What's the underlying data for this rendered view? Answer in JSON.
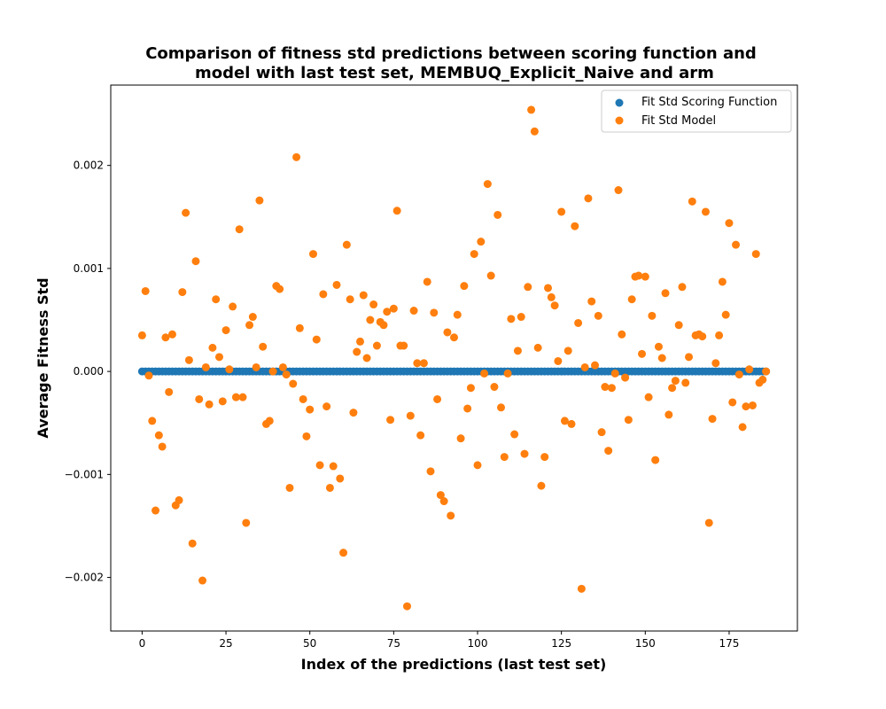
{
  "chart_data": {
    "type": "scatter",
    "title_lines": [
      "Comparison of fitness std predictions between scoring function and",
      "model with last test set, MEMBUQ_Explicit_Naive and arm"
    ],
    "xlabel": "Index of the predictions (last test set)",
    "ylabel": "Average Fitness Std",
    "xlim": [
      -9.35,
      195.35
    ],
    "ylim": [
      -0.00252,
      0.00278
    ],
    "xticks": [
      0,
      25,
      50,
      75,
      100,
      125,
      150,
      175
    ],
    "yticks": [
      -0.002,
      -0.001,
      0.0,
      0.001,
      0.002
    ],
    "ytick_labels": [
      "−0.002",
      "−0.001",
      "0.000",
      "0.001",
      "0.002"
    ],
    "grid": false,
    "legend_position": "top-right",
    "series": [
      {
        "name": "Fit Std Scoring Function",
        "color": "#1f77b4",
        "x_start": 0,
        "count": 187,
        "constant_y": 0.0
      },
      {
        "name": "Fit Std Model",
        "color": "#ff7f0e",
        "x_start": 0,
        "values": [
          0.00035,
          0.00078,
          -4e-05,
          -0.00048,
          -0.00135,
          -0.00062,
          -0.00073,
          0.00033,
          -0.0002,
          0.00036,
          -0.0013,
          -0.00125,
          0.00077,
          0.00154,
          0.00011,
          -0.00167,
          0.00107,
          -0.00027,
          -0.00203,
          4e-05,
          -0.00032,
          0.00023,
          0.0007,
          0.00014,
          -0.00029,
          0.0004,
          2e-05,
          0.00063,
          -0.00025,
          0.00138,
          -0.00025,
          -0.00147,
          0.00045,
          0.00053,
          4e-05,
          0.00166,
          0.00024,
          -0.00051,
          -0.00048,
          0.0,
          0.00083,
          0.0008,
          4e-05,
          -3e-05,
          -0.00113,
          -0.00012,
          0.00208,
          0.00042,
          -0.00027,
          -0.00063,
          -0.00037,
          0.00114,
          0.00031,
          -0.00091,
          0.00075,
          -0.00034,
          -0.00113,
          -0.00092,
          0.00084,
          -0.00104,
          -0.00176,
          0.00123,
          0.0007,
          -0.0004,
          0.00019,
          0.00029,
          0.00074,
          0.00013,
          0.0005,
          0.00065,
          0.00025,
          0.00048,
          0.00045,
          0.00058,
          -0.00047,
          0.00061,
          0.00156,
          0.00025,
          0.00025,
          -0.00228,
          -0.00043,
          0.00059,
          8e-05,
          -0.00062,
          8e-05,
          0.00087,
          -0.00097,
          0.00057,
          -0.00027,
          -0.0012,
          -0.00126,
          0.00038,
          -0.0014,
          0.00033,
          0.00055,
          -0.00065,
          0.00083,
          -0.00036,
          -0.00016,
          0.00114,
          -0.00091,
          0.00126,
          -2e-05,
          0.00182,
          0.00093,
          -0.00015,
          0.00152,
          -0.00035,
          -0.00083,
          -2e-05,
          0.00051,
          -0.00061,
          0.0002,
          0.00053,
          -0.0008,
          0.00082,
          0.00254,
          0.00233,
          0.00023,
          -0.00111,
          -0.00083,
          0.00081,
          0.00072,
          0.00064,
          0.0001,
          0.00155,
          -0.00048,
          0.0002,
          -0.00051,
          0.00141,
          0.00047,
          -0.00211,
          4e-05,
          0.00168,
          0.00068,
          6e-05,
          0.00054,
          -0.00059,
          -0.00015,
          -0.00077,
          -0.00016,
          -2e-05,
          0.00176,
          0.00036,
          -6e-05,
          -0.00047,
          0.0007,
          0.00092,
          0.00093,
          0.00017,
          0.00092,
          -0.00025,
          0.00054,
          -0.00086,
          0.00024,
          0.00013,
          0.00076,
          -0.00042,
          -0.00016,
          -9e-05,
          0.00045,
          0.00082,
          -0.00011,
          0.00014,
          0.00165,
          0.00035,
          0.00036,
          0.00034,
          0.00155,
          -0.00147,
          -0.00046,
          8e-05,
          0.00035,
          0.00087,
          0.00055,
          0.00144,
          -0.0003,
          0.00123,
          -3e-05,
          -0.00054,
          -0.00034,
          2e-05,
          -0.00033,
          0.00114,
          -0.00011,
          -8e-05,
          0.0
        ]
      }
    ]
  }
}
